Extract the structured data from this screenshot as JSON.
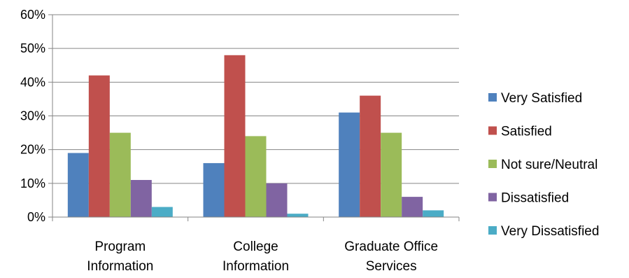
{
  "chart_data": {
    "type": "bar",
    "categories": [
      [
        "Program",
        "Information"
      ],
      [
        "College",
        "Information"
      ],
      [
        "Graduate Office",
        "Services"
      ]
    ],
    "series": [
      {
        "name": "Very Satisfied",
        "color": "#4F81BD",
        "values": [
          19,
          16,
          31
        ]
      },
      {
        "name": "Satisfied",
        "color": "#C0504D",
        "values": [
          42,
          48,
          36
        ]
      },
      {
        "name": "Not sure/Neutral",
        "color": "#9BBB59",
        "values": [
          25,
          24,
          25
        ]
      },
      {
        "name": "Dissatisfied",
        "color": "#8064A2",
        "values": [
          11,
          10,
          6
        ]
      },
      {
        "name": "Very Dissatisfied",
        "color": "#4BACC6",
        "values": [
          3,
          1,
          2
        ]
      }
    ],
    "ylim": [
      0,
      60
    ],
    "yticks": [
      "0%",
      "10%",
      "20%",
      "30%",
      "40%",
      "50%",
      "60%"
    ],
    "grid": true,
    "legend_position": "right",
    "title": "",
    "xlabel": "",
    "ylabel": ""
  }
}
